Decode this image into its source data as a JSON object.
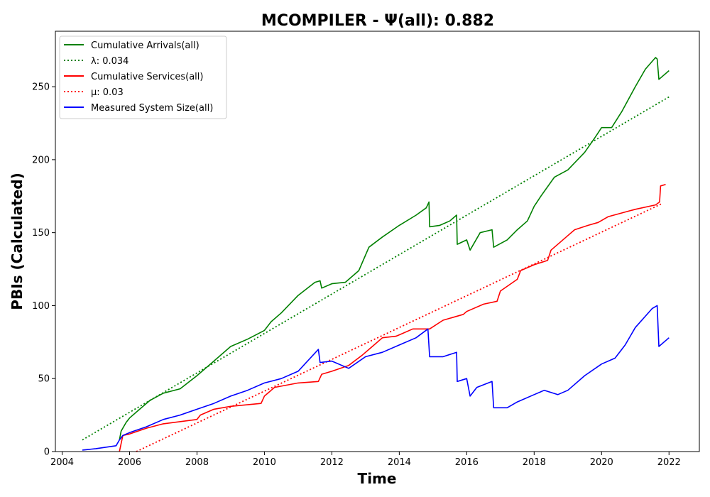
{
  "chart_data": {
    "type": "line",
    "title": "MCOMPILER -  Ψ(all): 0.882",
    "xlabel": "Time",
    "ylabel": "PBIs (Calculated)",
    "xlim": [
      2003.8,
      2022.9
    ],
    "ylim": [
      0,
      288
    ],
    "xticks": [
      2004,
      2006,
      2008,
      2010,
      2012,
      2014,
      2016,
      2018,
      2020,
      2022
    ],
    "xtick_labels": [
      "2004",
      "2006",
      "2008",
      "2010",
      "2012",
      "2014",
      "2016",
      "2018",
      "2020",
      "2022"
    ],
    "yticks": [
      0,
      50,
      100,
      150,
      200,
      250
    ],
    "ytick_labels": [
      "0",
      "50",
      "100",
      "150",
      "200",
      "250"
    ],
    "grid": false,
    "legend_position": "top-left",
    "series": [
      {
        "name": "Cumulative Arrivals(all)",
        "color": "#008000",
        "style": "solid",
        "x": [
          2005.7,
          2005.75,
          2005.9,
          2006.0,
          2006.3,
          2006.6,
          2007.0,
          2007.5,
          2008.0,
          2008.5,
          2009.0,
          2009.5,
          2010.0,
          2010.2,
          2010.5,
          2011.0,
          2011.5,
          2011.65,
          2011.7,
          2012.0,
          2012.4,
          2012.8,
          2013.1,
          2013.5,
          2014.0,
          2014.5,
          2014.8,
          2014.88,
          2014.9,
          2015.2,
          2015.5,
          2015.7,
          2015.72,
          2016.0,
          2016.1,
          2016.4,
          2016.75,
          2016.8,
          2017.2,
          2017.5,
          2017.8,
          2018.0,
          2018.2,
          2018.6,
          2019.0,
          2019.5,
          2019.8,
          2020.0,
          2020.3,
          2020.6,
          2021.0,
          2021.3,
          2021.6,
          2021.65,
          2021.7,
          2022.0
        ],
        "y": [
          8,
          14,
          20,
          23,
          29,
          35,
          40,
          43,
          52,
          62,
          72,
          77,
          83,
          89,
          95,
          107,
          116,
          117,
          112,
          115,
          116,
          124,
          140,
          147,
          155,
          162,
          167,
          171,
          154,
          155,
          158,
          162,
          142,
          145,
          138,
          150,
          152,
          140,
          145,
          152,
          158,
          168,
          175,
          188,
          193,
          205,
          215,
          222,
          222,
          233,
          250,
          262,
          270,
          269,
          255,
          261
        ]
      },
      {
        "name": "λ: 0.034",
        "color": "#008000",
        "style": "dotted",
        "x": [
          2004.6,
          2022.0
        ],
        "y": [
          8,
          243
        ]
      },
      {
        "name": "Cumulative Services(all)",
        "color": "#ff0000",
        "style": "solid",
        "x": [
          2005.7,
          2005.8,
          2006.0,
          2006.5,
          2007.0,
          2008.0,
          2008.1,
          2008.5,
          2009.0,
          2009.9,
          2010.0,
          2010.3,
          2011.0,
          2011.6,
          2011.7,
          2012.0,
          2012.5,
          2012.9,
          2013.2,
          2013.5,
          2013.9,
          2014.0,
          2014.4,
          2014.9,
          2015.3,
          2015.9,
          2016.0,
          2016.5,
          2016.9,
          2017.0,
          2017.5,
          2017.6,
          2018.0,
          2018.4,
          2018.5,
          2019.0,
          2019.2,
          2019.6,
          2019.9,
          2020.2,
          2021.0,
          2021.6,
          2021.72,
          2021.75,
          2021.9
        ],
        "y": [
          0,
          11,
          12,
          16,
          19,
          22,
          25,
          29,
          31,
          33,
          38,
          44,
          47,
          48,
          53,
          55,
          59,
          66,
          72,
          78,
          79,
          80,
          84,
          84,
          90,
          94,
          96,
          101,
          103,
          110,
          118,
          124,
          128,
          131,
          138,
          148,
          152,
          155,
          157,
          161,
          166,
          169,
          171,
          182,
          183
        ]
      },
      {
        "name": "μ: 0.03",
        "color": "#ff0000",
        "style": "dotted",
        "x": [
          2006.2,
          2021.8
        ],
        "y": [
          0,
          170
        ]
      },
      {
        "name": "Measured System Size(all)",
        "color": "#0000ff",
        "style": "solid",
        "x": [
          2004.6,
          2005.0,
          2005.6,
          2005.7,
          2005.8,
          2006.0,
          2006.5,
          2007.0,
          2007.5,
          2008.0,
          2008.5,
          2009.0,
          2009.5,
          2010.0,
          2010.5,
          2011.0,
          2011.6,
          2011.65,
          2012.0,
          2012.5,
          2013.0,
          2013.5,
          2014.0,
          2014.5,
          2014.85,
          2014.9,
          2015.3,
          2015.7,
          2015.72,
          2016.0,
          2016.1,
          2016.3,
          2016.75,
          2016.8,
          2017.2,
          2017.5,
          2018.0,
          2018.3,
          2018.7,
          2019.0,
          2019.5,
          2020.0,
          2020.4,
          2020.7,
          2021.0,
          2021.5,
          2021.65,
          2021.7,
          2022.0
        ],
        "y": [
          1,
          2,
          4,
          8,
          11,
          13,
          17,
          22,
          25,
          29,
          33,
          38,
          42,
          47,
          50,
          55,
          70,
          61,
          62,
          57,
          65,
          68,
          73,
          78,
          84,
          65,
          65,
          68,
          48,
          50,
          38,
          44,
          48,
          30,
          30,
          34,
          39,
          42,
          39,
          42,
          52,
          60,
          64,
          73,
          85,
          98,
          100,
          72,
          78
        ]
      }
    ]
  }
}
